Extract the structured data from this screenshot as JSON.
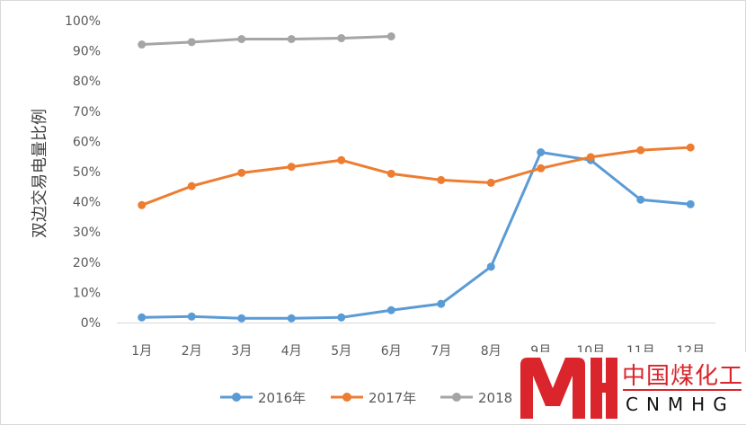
{
  "chart_data": {
    "type": "line",
    "ylabel": "双边交易电量比例",
    "categories": [
      "1月",
      "2月",
      "3月",
      "4月",
      "5月",
      "6月",
      "7月",
      "8月",
      "9月",
      "10月",
      "11月",
      "12月"
    ],
    "y_ticks": [
      "0%",
      "10%",
      "20%",
      "30%",
      "40%",
      "50%",
      "60%",
      "70%",
      "80%",
      "90%",
      "100%"
    ],
    "ylim": [
      0,
      100
    ],
    "grid": false,
    "legend_position": "bottom",
    "series": [
      {
        "name": "2016年",
        "color": "#5b9bd5",
        "values": [
          1.7,
          2.0,
          1.4,
          1.4,
          1.7,
          4.1,
          6.2,
          18.5,
          56.4,
          53.8,
          40.7,
          39.2
        ]
      },
      {
        "name": "2017年",
        "color": "#ed7d31",
        "values": [
          38.9,
          45.2,
          49.6,
          51.6,
          53.8,
          49.3,
          47.2,
          46.3,
          51.1,
          54.8,
          57.1,
          58.0
        ]
      },
      {
        "name": "2018",
        "color": "#a5a5a5",
        "values": [
          92.1,
          92.9,
          93.9,
          93.9,
          94.2,
          94.8,
          null,
          null,
          null,
          null,
          null,
          null
        ]
      }
    ]
  },
  "logo": {
    "text_cn": "中国煤化工",
    "text_en": "CNMHG"
  }
}
